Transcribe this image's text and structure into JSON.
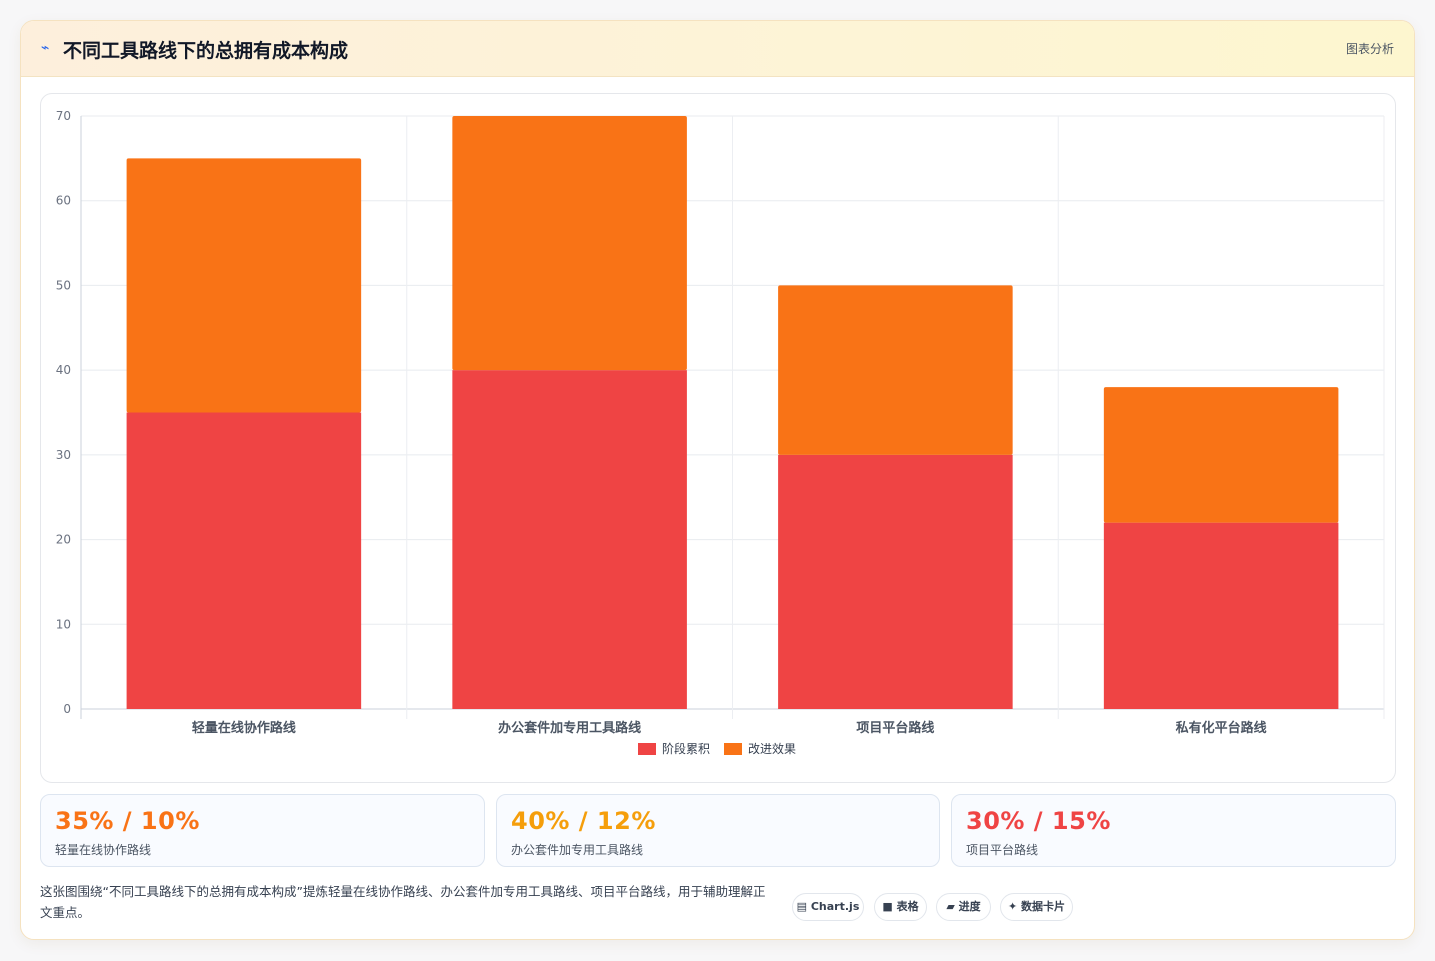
{
  "header": {
    "icon": "sparkline-icon",
    "title": "不同工具路线下的总拥有成本构成",
    "badge": "图表分析"
  },
  "chart_data": {
    "type": "bar",
    "stacked": true,
    "title": "",
    "categories": [
      "轻量在线协作路线",
      "办公套件加专用工具路线",
      "项目平台路线",
      "私有化平台路线"
    ],
    "series": [
      {
        "name": "阶段累积",
        "color": "#ef4444",
        "values": [
          35,
          40,
          30,
          22
        ]
      },
      {
        "name": "改进效果",
        "color": "#f97316",
        "values": [
          30,
          30,
          20,
          16
        ]
      }
    ],
    "ylim": [
      0,
      70
    ],
    "yticks": [
      0,
      10,
      20,
      30,
      40,
      50,
      60,
      70
    ],
    "grid": true,
    "legend_position": "bottom-center"
  },
  "stats": [
    {
      "value": "35% / 10%",
      "label": "轻量在线协作路线",
      "color": "#f97316"
    },
    {
      "value": "40% / 12%",
      "label": "办公套件加专用工具路线",
      "color": "#f59e0b"
    },
    {
      "value": "30% / 15%",
      "label": "项目平台路线",
      "color": "#ef4444"
    }
  ],
  "caption": "这张图围绕“不同工具路线下的总拥有成本构成”提炼轻量在线协作路线、办公套件加专用工具路线、项目平台路线，用于辅助理解正文重点。",
  "tags": [
    {
      "icon": "chart-icon",
      "glyph": "▤",
      "label": "Chart.js"
    },
    {
      "icon": "table-icon",
      "glyph": "■",
      "label": "表格"
    },
    {
      "icon": "progress-icon",
      "glyph": "▰",
      "label": "进度"
    },
    {
      "icon": "sparkle-icon",
      "glyph": "✦",
      "label": "数据卡片"
    }
  ]
}
